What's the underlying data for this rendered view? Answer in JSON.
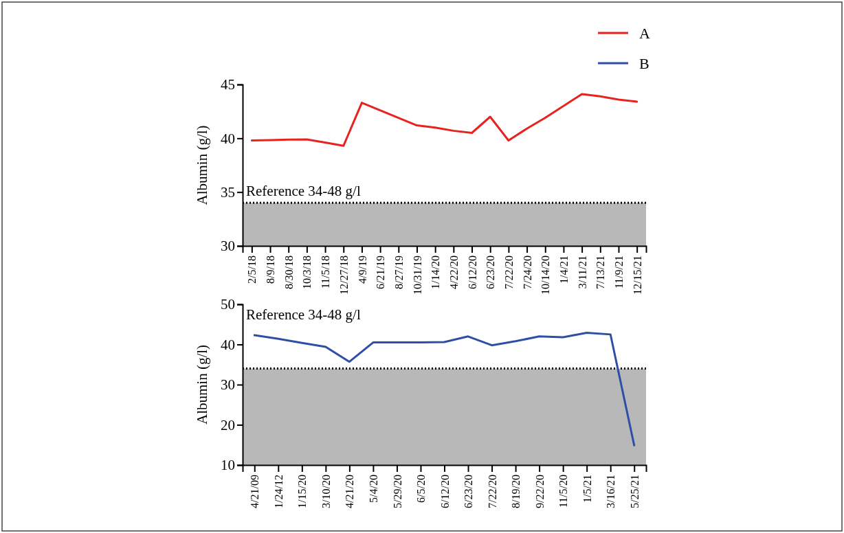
{
  "chart_data": [
    {
      "type": "line",
      "ylabel": "Albumin (g/l)",
      "legend": "top right",
      "categories": [
        "2/5/18",
        "8/9/18",
        "8/30/18",
        "10/3/18",
        "11/5/18",
        "12/27/18",
        "4/9/19",
        "6/21/19",
        "8/27/19",
        "10/31/19",
        "1/14/20",
        "4/22/20",
        "6/12/20",
        "6/23/20",
        "7/22/20",
        "7/24/20",
        "10/14/20",
        "1/4/21",
        "3/11/21",
        "7/13/21",
        "11/9/21",
        "12/15/21"
      ],
      "series": [
        {
          "name": "A",
          "color": "#e8231f",
          "values": [
            39.8,
            39.83,
            39.87,
            39.9,
            39.6,
            39.3,
            43.3,
            42.6,
            41.9,
            41.2,
            41.0,
            40.7,
            40.5,
            42.0,
            39.8,
            40.9,
            41.9,
            43.0,
            44.1,
            43.9,
            43.6,
            43.4
          ]
        }
      ],
      "ylim": [
        30,
        45
      ],
      "yticks": [
        30,
        35,
        40,
        45
      ],
      "ref_lines": [
        {
          "axis": "y",
          "value": 34,
          "label": "Reference 34-48 g/l",
          "line_style": "dotted",
          "color": "#000000"
        }
      ],
      "bands": [
        {
          "axis": "y",
          "from": 30,
          "to": 34,
          "color": "#b7b8b7"
        }
      ]
    },
    {
      "type": "line",
      "ylabel": "Albumin (g/l)",
      "legend": "top right",
      "categories": [
        "4/21/09",
        "1/24/12",
        "1/15/20",
        "3/10/20",
        "4/21/20",
        "5/4/20",
        "5/29/20",
        "6/5/20",
        "6/12/20",
        "6/23/20",
        "7/22/20",
        "8/19/20",
        "9/22/20",
        "11/5/20",
        "1/5/21",
        "3/16/21",
        "5/25/21"
      ],
      "series": [
        {
          "name": "B",
          "color": "#2f4fa6",
          "values": [
            42.3,
            41.4,
            40.4,
            39.4,
            35.7,
            40.5,
            40.5,
            40.5,
            40.6,
            42.0,
            39.8,
            40.8,
            42.0,
            41.8,
            42.9,
            42.5,
            14.9
          ]
        }
      ],
      "ylim": [
        10,
        50
      ],
      "yticks": [
        10,
        20,
        30,
        40,
        50
      ],
      "ref_lines": [
        {
          "axis": "y",
          "value": 34,
          "label": "Reference 34-48 g/l",
          "line_style": "dotted",
          "color": "#000000"
        }
      ],
      "bands": [
        {
          "axis": "y",
          "from": 10,
          "to": 34,
          "color": "#b7b8b7"
        }
      ]
    }
  ]
}
